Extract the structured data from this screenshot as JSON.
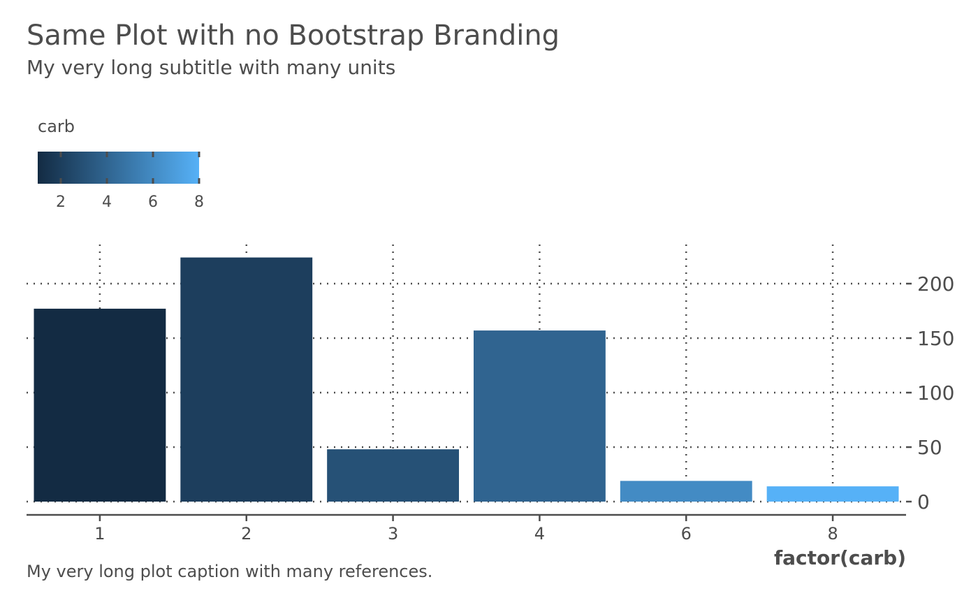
{
  "chart_data": {
    "type": "bar",
    "title": "Same Plot with no Bootstrap Branding",
    "subtitle": "My very long subtitle with many units",
    "caption": "My very long plot caption with many references.",
    "xlabel": "factor(carb)",
    "ylabel": "",
    "categories": [
      "1",
      "2",
      "3",
      "4",
      "6",
      "8"
    ],
    "values": [
      177,
      224,
      48,
      157,
      19,
      14
    ],
    "fill_values": [
      1,
      2,
      3,
      4,
      6,
      8
    ],
    "ylim": [
      0,
      235
    ],
    "y_ticks": [
      0,
      50,
      100,
      150,
      200
    ],
    "y_tick_labels": [
      "0",
      "50",
      "100",
      "150",
      "200"
    ],
    "y_axis_position": "right",
    "grid": "dotted major gridlines",
    "legend": {
      "title": "carb",
      "placement": "top-left",
      "type": "colorbar",
      "range": [
        1,
        8
      ],
      "ticks": [
        2,
        4,
        6,
        8
      ],
      "tick_labels": [
        "2",
        "4",
        "6",
        "8"
      ],
      "color_low": "#132b43",
      "color_high": "#56b1f7"
    }
  }
}
